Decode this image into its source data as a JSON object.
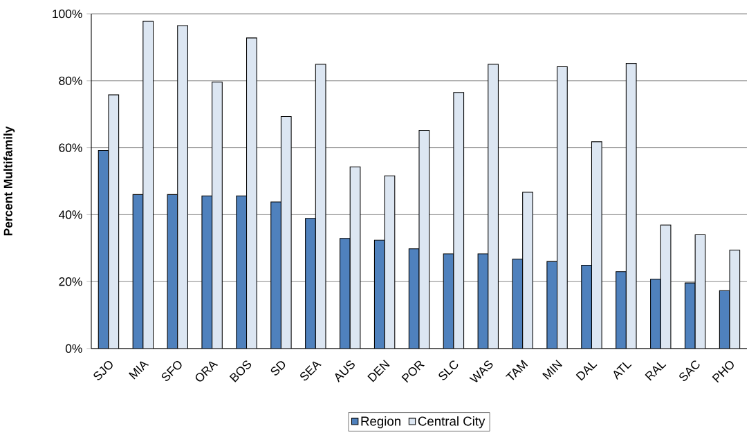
{
  "chart_data": {
    "type": "bar",
    "ylabel": "Percent Multifamily",
    "categories": [
      "SJO",
      "MIA",
      "SFO",
      "ORA",
      "BOS",
      "SD",
      "SEA",
      "AUS",
      "DEN",
      "POR",
      "SLC",
      "WAS",
      "TAM",
      "MIN",
      "DAL",
      "ATL",
      "RAL",
      "SAC",
      "PHO"
    ],
    "series": [
      {
        "name": "Region",
        "color": "#4f81bd",
        "values": [
          59.2,
          46.0,
          46.0,
          45.6,
          45.6,
          43.8,
          38.9,
          32.9,
          32.4,
          29.8,
          28.3,
          28.3,
          26.7,
          26.0,
          24.9,
          23.0,
          20.7,
          19.6,
          17.3
        ]
      },
      {
        "name": "Central City",
        "color": "#dce6f2",
        "values": [
          75.8,
          97.8,
          96.5,
          79.6,
          92.8,
          69.3,
          84.9,
          54.3,
          51.6,
          65.2,
          76.5,
          84.9,
          46.7,
          84.2,
          61.8,
          85.2,
          36.9,
          34.0,
          29.4
        ]
      }
    ],
    "ylim": [
      0,
      100
    ],
    "yticks": [
      {
        "value": 0,
        "label": "0%"
      },
      {
        "value": 20,
        "label": "20%"
      },
      {
        "value": 40,
        "label": "40%"
      },
      {
        "value": 60,
        "label": "60%"
      },
      {
        "value": 80,
        "label": "80%"
      },
      {
        "value": 100,
        "label": "100%"
      }
    ],
    "grid": "y",
    "legend": "bottom"
  }
}
